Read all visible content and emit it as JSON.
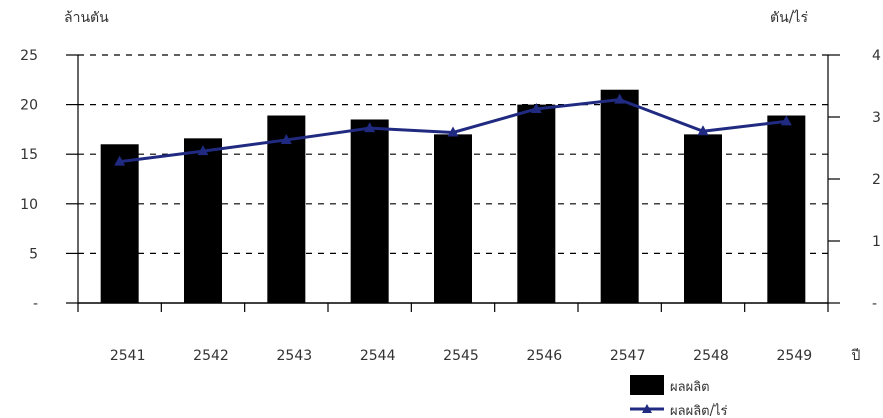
{
  "chart_data": {
    "type": "bar",
    "categories": [
      "2541",
      "2542",
      "2543",
      "2544",
      "2545",
      "2546",
      "2547",
      "2548",
      "2549"
    ],
    "xlabel": "ปี",
    "ylabel": "ล้านตัน",
    "y2label": "ตัน/ไร่",
    "ylim": [
      0,
      25
    ],
    "y2lim": [
      0,
      4
    ],
    "yticks": [
      "-",
      "5",
      "10",
      "15",
      "20",
      "25"
    ],
    "y2ticks": [
      "-",
      "1",
      "2",
      "3",
      "4"
    ],
    "series": [
      {
        "name": "ผลผลิต",
        "type": "bar",
        "axis": "left",
        "values": [
          16,
          16.6,
          18.9,
          18.5,
          17,
          20,
          21.5,
          17,
          18.9
        ]
      },
      {
        "name": "ผลผลิต/ไร่",
        "type": "line",
        "axis": "right",
        "values": [
          2.28,
          2.45,
          2.63,
          2.82,
          2.75,
          3.13,
          3.28,
          2.77,
          2.93
        ]
      }
    ],
    "grid": "horizontal-dashed",
    "legend": "bottom-right",
    "colors": {
      "bar": "#000000",
      "line": "#1f2a80",
      "marker": "#1f2a80"
    }
  }
}
